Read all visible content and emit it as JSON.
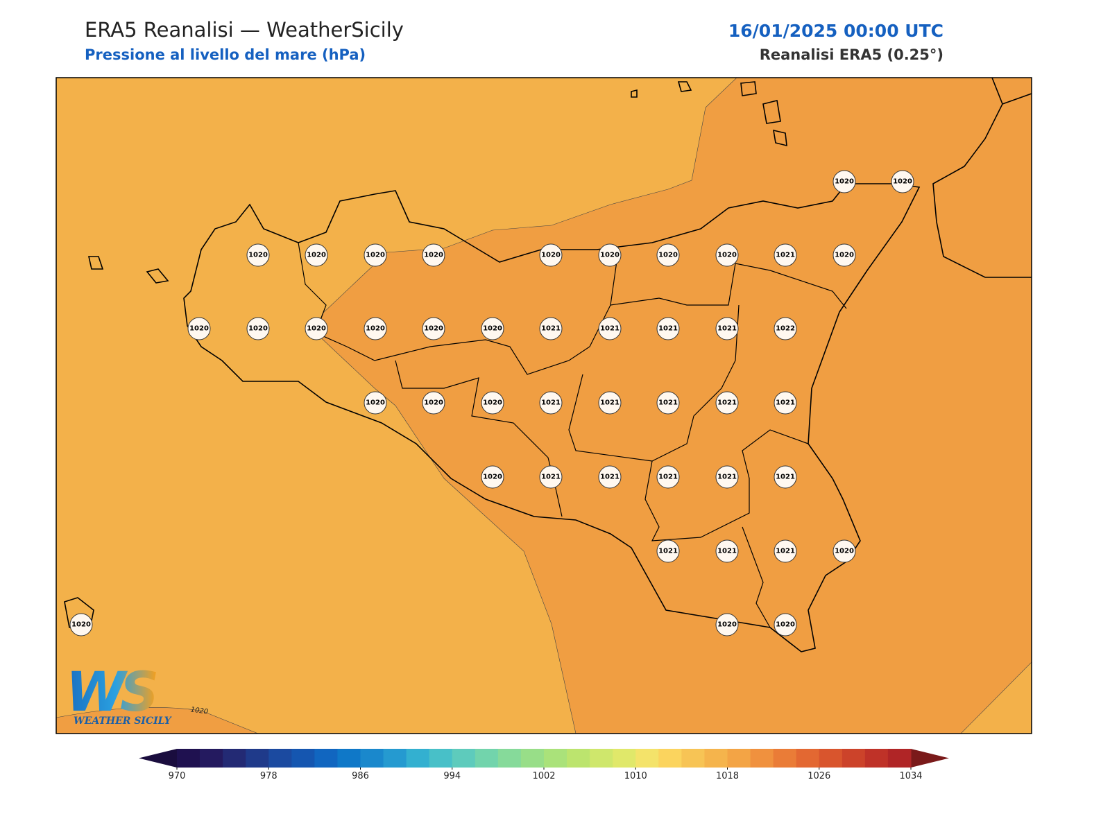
{
  "header": {
    "title": "ERA5 Reanalisi — WeatherSicily",
    "subtitle": "Pressione al livello del mare (hPa)",
    "datetime": "16/01/2025 00:00 UTC",
    "source": "Reanalisi ERA5 (0.25°)"
  },
  "map": {
    "background_color": "#f3b14a",
    "band_color": "#f09e42",
    "contour_label": "1020",
    "stations": [
      1020,
      1020,
      1020,
      1020,
      1020,
      1020,
      1020,
      1020,
      1020,
      1020,
      1021,
      1020,
      1020,
      1020,
      1020,
      1020,
      1020,
      1020,
      1021,
      1021,
      1021,
      1021,
      1022,
      1020,
      1020,
      1020,
      1021,
      1021,
      1021,
      1021,
      1021,
      1020,
      1021,
      1021,
      1021,
      1021,
      1021,
      1021,
      1021,
      1021,
      1020,
      1020,
      1020,
      1020
    ]
  },
  "colorbar": {
    "ticks": [
      970,
      978,
      986,
      994,
      1002,
      1010,
      1018,
      1026,
      1034
    ],
    "colors": [
      "#1f1150",
      "#241a5f",
      "#232a74",
      "#1f3a8a",
      "#1b4aa0",
      "#1556b0",
      "#1166c0",
      "#0f78c8",
      "#1a88cc",
      "#259ad0",
      "#33b0d0",
      "#48c0c8",
      "#5ecbbc",
      "#72d4ac",
      "#86da9a",
      "#98de88",
      "#aae27a",
      "#bce46e",
      "#cfe76c",
      "#e0e86a",
      "#f4e36a",
      "#fbd45e",
      "#f7c455",
      "#f5b44c",
      "#f3a445",
      "#f0913e",
      "#ea7c37",
      "#e36832",
      "#d9552d",
      "#cc432a",
      "#bf3228",
      "#b02526"
    ],
    "under_color": "#1a0d3e",
    "over_color": "#7a1a1a"
  },
  "logo": {
    "mark": "WS",
    "text": "WEATHER SICILY"
  }
}
